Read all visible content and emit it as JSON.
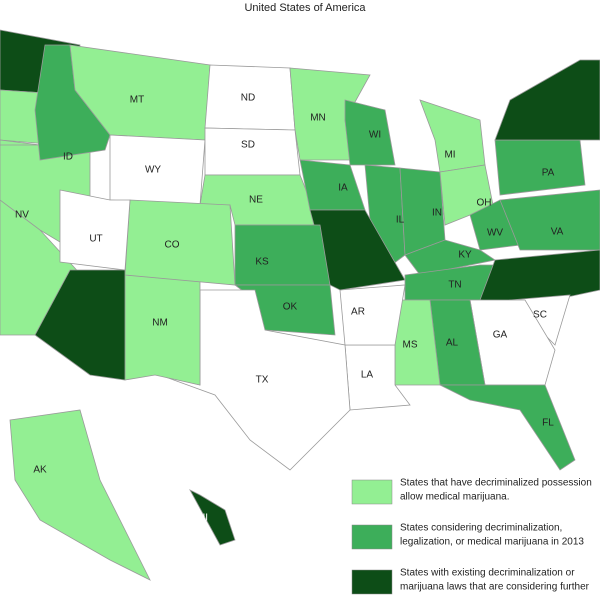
{
  "header": {
    "title": "United States of America"
  },
  "states": [
    {
      "color": "#0d4d17"
    },
    {
      "color": "#93ef93"
    },
    {
      "color": "#93ef93"
    },
    {
      "label": "NV",
      "color": "#93ef93"
    },
    {
      "label": "ID",
      "color": "#3dae5a"
    },
    {
      "label": "MT",
      "color": "#93ef93"
    },
    {
      "label": "ND",
      "color": "#ffffff"
    },
    {
      "label": "MN",
      "color": "#93ef93"
    },
    {
      "label": "WI",
      "color": "#3dae5a"
    },
    {
      "label": "MI",
      "color": "#93ef93"
    },
    {
      "label": "WY",
      "color": "#ffffff"
    },
    {
      "label": "SD",
      "color": "#ffffff"
    },
    {
      "label": "NE",
      "color": "#93ef93"
    },
    {
      "label": "IA",
      "color": "#3dae5a"
    },
    {
      "label": "IL",
      "color": "#3dae5a"
    },
    {
      "label": "IN",
      "color": "#3dae5a"
    },
    {
      "label": "OH",
      "color": "#93ef93"
    },
    {
      "label": "PA",
      "color": "#3dae5a"
    },
    {
      "color": "#0d4d17"
    },
    {
      "label": "WV",
      "color": "#3dae5a"
    },
    {
      "label": "VA",
      "color": "#3dae5a"
    },
    {
      "label": "KY",
      "color": "#3dae5a"
    },
    {
      "label": "TN",
      "color": "#3dae5a"
    },
    {
      "color": "#0d4d17"
    },
    {
      "label": "SC",
      "color": "#ffffff"
    },
    {
      "label": "GA",
      "color": "#ffffff"
    },
    {
      "label": "AL",
      "color": "#3dae5a"
    },
    {
      "label": "MS",
      "color": "#93ef93"
    },
    {
      "label": "FL",
      "color": "#3dae5a"
    },
    {
      "label": "LA",
      "color": "#ffffff"
    },
    {
      "label": "AR",
      "color": "#ffffff"
    },
    {
      "color": "#0d4d17"
    },
    {
      "label": "KS",
      "color": "#3dae5a"
    },
    {
      "label": "OK",
      "color": "#3dae5a"
    },
    {
      "label": "TX",
      "color": "#ffffff"
    },
    {
      "label": "NM",
      "color": "#93ef93"
    },
    {
      "label": "CO",
      "color": "#93ef93"
    },
    {
      "label": "UT",
      "color": "#ffffff"
    },
    {
      "color": "#0d4d17"
    },
    {
      "label": "AK",
      "color": "#93ef93"
    },
    {
      "label": "HI",
      "color": "#0d4d17"
    }
  ],
  "legend": [
    {
      "color": "#93ef93",
      "lines": [
        "States that have decriminalized possession",
        "allow medical marijuana."
      ]
    },
    {
      "color": "#3dae5a",
      "lines": [
        "States considering decriminalization,",
        "legalization, or medical marijuana in 2013"
      ]
    },
    {
      "color": "#0d4d17",
      "lines": [
        "States with existing decriminalization or",
        "marijuana laws that are considering further"
      ]
    }
  ]
}
